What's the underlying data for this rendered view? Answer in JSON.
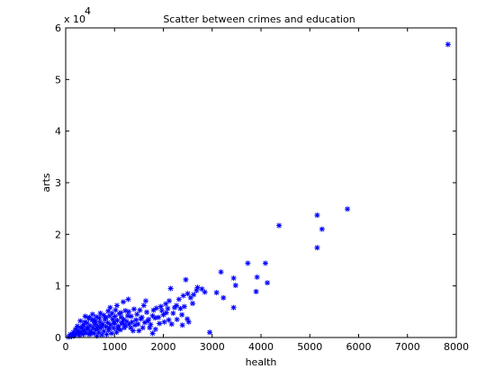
{
  "chart_data": {
    "type": "scatter",
    "title": "Scatter between crimes and education",
    "xlabel": "health",
    "ylabel": "arts",
    "xlim": [
      0,
      8000
    ],
    "ylim": [
      0,
      60000
    ],
    "x_ticks": [
      0,
      1000,
      2000,
      3000,
      4000,
      5000,
      6000,
      7000,
      8000
    ],
    "x_tick_labels": [
      "0",
      "1000",
      "2000",
      "3000",
      "4000",
      "5000",
      "6000",
      "7000",
      "8000"
    ],
    "y_ticks": [
      0,
      10000,
      20000,
      30000,
      40000,
      50000,
      60000
    ],
    "y_tick_labels": [
      "0",
      "1",
      "2",
      "3",
      "4",
      "5",
      "6"
    ],
    "y_multiplier_base": "x 10",
    "y_multiplier_exp": "4",
    "grid": false,
    "marker": "*",
    "marker_color": "#0000ff",
    "series": [
      {
        "points": [
          [
            7830,
            56800
          ],
          [
            5770,
            24900
          ],
          [
            5150,
            23700
          ],
          [
            5250,
            21000
          ],
          [
            5150,
            17400
          ],
          [
            4370,
            21700
          ],
          [
            4090,
            14400
          ],
          [
            4130,
            10600
          ],
          [
            3920,
            11700
          ],
          [
            3900,
            8900
          ],
          [
            3730,
            14400
          ],
          [
            3480,
            10100
          ],
          [
            3440,
            5800
          ],
          [
            3440,
            11500
          ],
          [
            3180,
            12700
          ],
          [
            3230,
            7700
          ],
          [
            3090,
            8700
          ],
          [
            2950,
            1000
          ],
          [
            2790,
            9400
          ],
          [
            2700,
            9700
          ],
          [
            2600,
            6600
          ],
          [
            2560,
            7700
          ],
          [
            2500,
            8500
          ],
          [
            2460,
            11200
          ],
          [
            2490,
            3600
          ],
          [
            2410,
            8100
          ],
          [
            2380,
            4400
          ],
          [
            2320,
            7400
          ],
          [
            2270,
            6200
          ],
          [
            2230,
            5800
          ],
          [
            2150,
            9500
          ],
          [
            2120,
            7100
          ],
          [
            2110,
            3400
          ],
          [
            2090,
            5600
          ],
          [
            2060,
            4800
          ],
          [
            2000,
            4400
          ],
          [
            1950,
            6000
          ],
          [
            1900,
            3900
          ],
          [
            1860,
            5700
          ],
          [
            1840,
            1600
          ],
          [
            1800,
            5300
          ],
          [
            1780,
            4200
          ],
          [
            1740,
            2500
          ],
          [
            1680,
            3200
          ],
          [
            1660,
            4900
          ],
          [
            1640,
            7100
          ],
          [
            1600,
            6200
          ],
          [
            1580,
            1900
          ],
          [
            1540,
            3600
          ],
          [
            1520,
            5300
          ],
          [
            1480,
            2600
          ],
          [
            1440,
            3400
          ],
          [
            1400,
            5500
          ],
          [
            1380,
            1300
          ],
          [
            1340,
            4100
          ],
          [
            1300,
            2600
          ],
          [
            1280,
            7400
          ],
          [
            1250,
            3100
          ],
          [
            1220,
            5200
          ],
          [
            1200,
            1900
          ],
          [
            1180,
            6900
          ],
          [
            1160,
            2700
          ],
          [
            1140,
            3900
          ],
          [
            1120,
            1500
          ],
          [
            1100,
            4600
          ],
          [
            1080,
            2200
          ],
          [
            1060,
            3300
          ],
          [
            1040,
            1000
          ],
          [
            1020,
            5300
          ],
          [
            1000,
            2700
          ],
          [
            980,
            1800
          ],
          [
            960,
            3600
          ],
          [
            940,
            800
          ],
          [
            920,
            2500
          ],
          [
            900,
            4200
          ],
          [
            880,
            1400
          ],
          [
            860,
            2900
          ],
          [
            840,
            600
          ],
          [
            820,
            2100
          ],
          [
            800,
            3500
          ],
          [
            780,
            1200
          ],
          [
            760,
            2600
          ],
          [
            740,
            500
          ],
          [
            720,
            1800
          ],
          [
            700,
            3000
          ],
          [
            680,
            1000
          ],
          [
            660,
            2200
          ],
          [
            640,
            300
          ],
          [
            620,
            1500
          ],
          [
            600,
            2600
          ],
          [
            580,
            800
          ],
          [
            560,
            1900
          ],
          [
            540,
            3400
          ],
          [
            520,
            1200
          ],
          [
            500,
            2300
          ],
          [
            480,
            600
          ],
          [
            460,
            1600
          ],
          [
            440,
            2800
          ],
          [
            420,
            900
          ],
          [
            400,
            4100
          ],
          [
            380,
            1400
          ],
          [
            360,
            600
          ],
          [
            340,
            2100
          ],
          [
            320,
            1000
          ],
          [
            300,
            3200
          ],
          [
            280,
            400
          ],
          [
            260,
            1300
          ],
          [
            240,
            2200
          ],
          [
            220,
            700
          ],
          [
            200,
            1600
          ],
          [
            180,
            300
          ],
          [
            160,
            1000
          ],
          [
            140,
            500
          ],
          [
            120,
            200
          ],
          [
            100,
            600
          ],
          [
            80,
            300
          ],
          [
            60,
            100
          ],
          [
            950,
            4700
          ],
          [
            870,
            5100
          ],
          [
            780,
            4300
          ],
          [
            690,
            3800
          ],
          [
            610,
            3100
          ],
          [
            550,
            4500
          ],
          [
            470,
            3700
          ],
          [
            1050,
            6200
          ],
          [
            1130,
            4800
          ],
          [
            1270,
            4200
          ],
          [
            1360,
            3000
          ],
          [
            1460,
            4500
          ],
          [
            1560,
            3900
          ],
          [
            1700,
            3500
          ],
          [
            1830,
            3800
          ],
          [
            1970,
            5200
          ],
          [
            2050,
            6500
          ],
          [
            2200,
            4700
          ],
          [
            2350,
            5600
          ],
          [
            2430,
            6000
          ],
          [
            2620,
            8300
          ],
          [
            2680,
            9100
          ],
          [
            2850,
            8800
          ],
          [
            890,
            1900
          ],
          [
            730,
            2300
          ],
          [
            650,
            1700
          ],
          [
            590,
            2900
          ],
          [
            510,
            700
          ],
          [
            430,
            1900
          ],
          [
            370,
            2500
          ],
          [
            310,
            1800
          ],
          [
            250,
            900
          ],
          [
            990,
            3100
          ],
          [
            1070,
            1700
          ],
          [
            1150,
            2900
          ],
          [
            1230,
            2300
          ],
          [
            1330,
            1900
          ],
          [
            1420,
            2400
          ],
          [
            1500,
            1300
          ],
          [
            1620,
            2900
          ],
          [
            1720,
            1900
          ],
          [
            1780,
            800
          ],
          [
            1920,
            2700
          ],
          [
            2020,
            3000
          ],
          [
            2170,
            2600
          ],
          [
            2280,
            3500
          ],
          [
            2390,
            2400
          ],
          [
            2520,
            3000
          ],
          [
            830,
            3900
          ],
          [
            910,
            5800
          ],
          [
            1010,
            4100
          ],
          [
            710,
            4700
          ],
          [
            630,
            4000
          ],
          [
            570,
            3400
          ],
          [
            490,
            3900
          ],
          [
            390,
            3000
          ],
          [
            1190,
            3500
          ],
          [
            1290,
            5000
          ]
        ]
      }
    ]
  }
}
